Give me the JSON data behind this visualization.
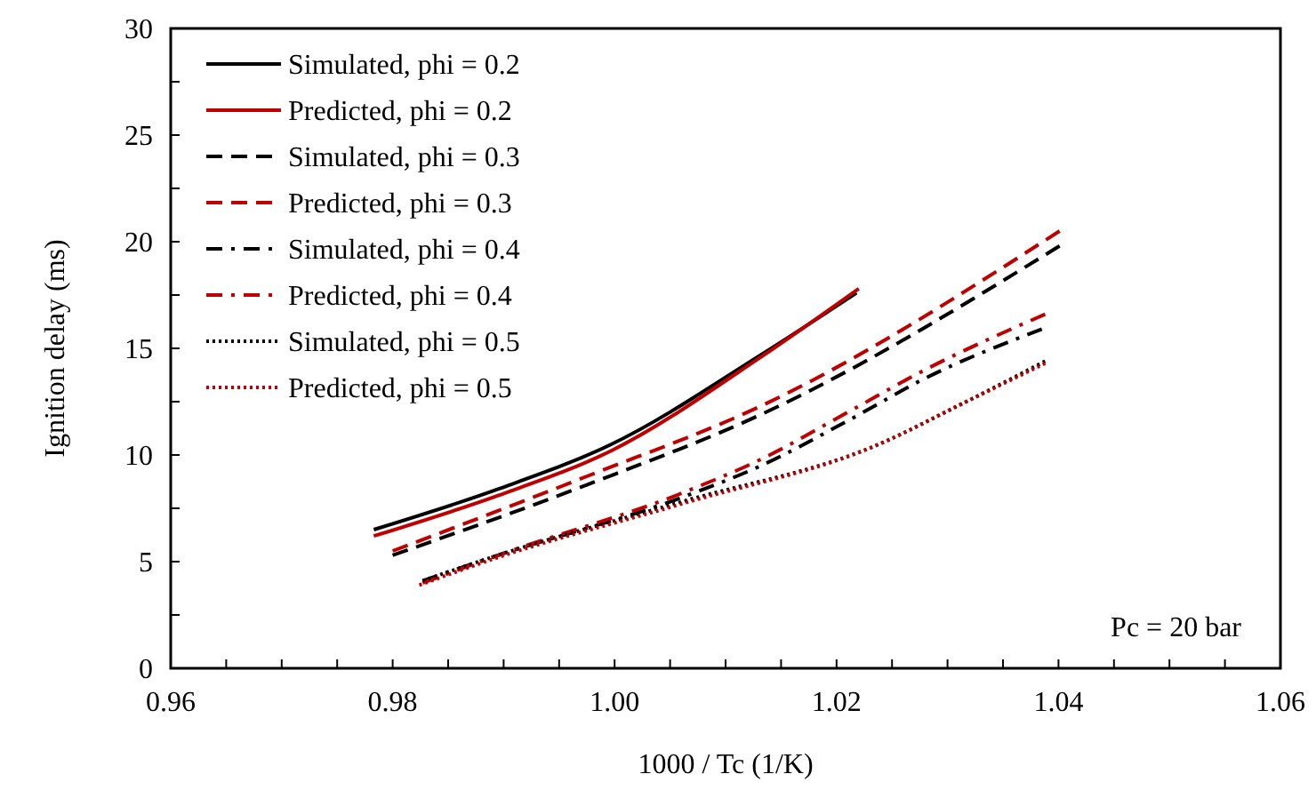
{
  "chart_data": {
    "type": "line",
    "xlabel": "1000 / Tc (1/K)",
    "ylabel": "Ignition delay (ms)",
    "xlim": [
      0.96,
      1.06
    ],
    "ylim": [
      0,
      30
    ],
    "xticks": [
      0.96,
      {
        "value": 0.965,
        "label": null
      },
      0.98,
      {
        "value": 0.985,
        "label": null
      },
      {
        "value": 0.97,
        "label": null
      },
      {
        "value": 0.975,
        "label": null
      },
      {
        "value": 0.99,
        "label": null
      },
      {
        "value": 0.995,
        "label": null
      },
      {
        "value": 1,
        "label": "1.00"
      },
      {
        "value": 1.005,
        "label": null
      },
      {
        "value": 1.01,
        "label": null
      },
      {
        "value": 1.015,
        "label": null
      },
      1.02,
      {
        "value": 1.025,
        "label": null
      },
      {
        "value": 1.03,
        "label": null
      },
      {
        "value": 1.035,
        "label": null
      },
      1.04,
      {
        "value": 1.045,
        "label": null
      },
      {
        "value": 1.05,
        "label": null
      },
      {
        "value": 1.055,
        "label": null
      },
      1.06
    ],
    "yticks": [
      0,
      {
        "value": 2.5,
        "label": null
      },
      5,
      {
        "value": 7.5,
        "label": null
      },
      10,
      {
        "value": 12.5,
        "label": null
      },
      15,
      {
        "value": 17.5,
        "label": null
      },
      20,
      {
        "value": 22.5,
        "label": null
      },
      25,
      {
        "value": 27.5,
        "label": null
      },
      30
    ],
    "grid": false,
    "legend": "top left",
    "marker": "none",
    "annotations": [
      "Pc = 20 bar"
    ],
    "series": [
      {
        "name": "Simulated, phi = 0.2",
        "color": "#000000",
        "line_style": "solid",
        "x": [
          0.9783,
          0.9895,
          0.9997,
          1.0132,
          1.0218
        ],
        "values": [
          6.5,
          8.4,
          10.5,
          14.7,
          17.6
        ]
      },
      {
        "name": "Predicted, phi = 0.2",
        "color": "#c00000",
        "line_style": "solid",
        "x": [
          0.9783,
          0.9895,
          0.9997,
          1.0132,
          1.022
        ],
        "values": [
          6.2,
          8.1,
          10.2,
          14.6,
          17.8
        ]
      },
      {
        "name": "Simulated, phi = 0.3",
        "color": "#000000",
        "line_style": "dashed",
        "x": [
          0.98,
          0.9975,
          1.0132,
          1.0401
        ],
        "values": [
          5.3,
          8.6,
          11.9,
          19.8
        ]
      },
      {
        "name": "Predicted, phi = 0.3",
        "color": "#c00000",
        "line_style": "dashed",
        "x": [
          0.98,
          0.9975,
          1.0132,
          1.0401
        ],
        "values": [
          5.5,
          9.0,
          12.3,
          20.5
        ]
      },
      {
        "name": "Simulated, phi = 0.4",
        "color": "#000000",
        "line_style": "dashdot",
        "x": [
          0.9827,
          0.9895,
          1.006,
          1.0132,
          1.021,
          1.028,
          1.0385
        ],
        "values": [
          4.1,
          5.3,
          8.0,
          9.5,
          11.6,
          13.6,
          15.9
        ]
      },
      {
        "name": "Predicted, phi = 0.4",
        "color": "#c00000",
        "line_style": "dashdot",
        "x": [
          0.9827,
          0.9895,
          1.006,
          1.0132,
          1.021,
          1.028,
          1.0388
        ],
        "values": [
          4.0,
          5.3,
          8.2,
          9.8,
          12.0,
          14.0,
          16.6
        ]
      },
      {
        "name": "Simulated, phi = 0.5",
        "color": "#000000",
        "line_style": "dotted",
        "x": [
          0.9827,
          0.9895,
          1.006,
          1.0238,
          1.0313,
          1.0388
        ],
        "values": [
          4.1,
          5.3,
          7.8,
          10.5,
          12.4,
          14.4
        ]
      },
      {
        "name": "Predicted, phi = 0.5",
        "color": "#c00000",
        "line_style": "dotted",
        "x": [
          0.9824,
          0.9895,
          1.006,
          1.0238,
          1.0313,
          1.0388
        ],
        "values": [
          3.9,
          5.2,
          7.7,
          10.5,
          12.4,
          14.3
        ]
      }
    ]
  }
}
